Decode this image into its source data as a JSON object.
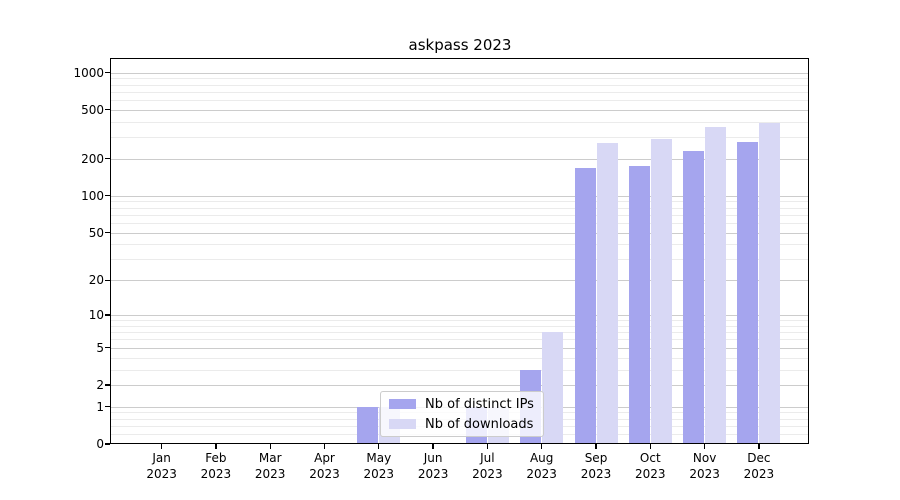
{
  "title": "askpass 2023",
  "chart_data": {
    "type": "bar",
    "title": "askpass 2023",
    "scale": "log1p",
    "ylim": [
      0,
      1090
    ],
    "grid": true,
    "legend_position": "lower center (inside plot, overlapping small bars)",
    "year_label": "2023",
    "categories": [
      "Jan",
      "Feb",
      "Mar",
      "Apr",
      "May",
      "Jun",
      "Jul",
      "Aug",
      "Sep",
      "Oct",
      "Nov",
      "Dec"
    ],
    "series": [
      {
        "name": "Nb of distinct IPs",
        "color": "#a5a5ee",
        "values": [
          0,
          0,
          0,
          0,
          1,
          0,
          1,
          3,
          170,
          175,
          230,
          275
        ]
      },
      {
        "name": "Nb of downloads",
        "color": "#d8d8f5",
        "values": [
          0,
          0,
          0,
          0,
          1,
          0,
          1,
          7,
          270,
          290,
          360,
          390
        ]
      }
    ],
    "y_ticks": [
      0,
      1,
      2,
      5,
      10,
      20,
      50,
      100,
      200,
      500,
      1000
    ],
    "y_tick_labels": [
      "0",
      "1",
      "2",
      "5",
      "10",
      "20",
      "50",
      "100",
      "200",
      "500",
      "1000"
    ],
    "y_minor_ticks": [
      0.2,
      0.4,
      0.6,
      0.8,
      3,
      4,
      6,
      7,
      8,
      9,
      30,
      40,
      60,
      70,
      80,
      90,
      300,
      400,
      600,
      700,
      800,
      900
    ],
    "xlabel": "",
    "ylabel": ""
  },
  "colors": {
    "ips_bar": "#a5a5ee",
    "downloads_bar": "#d8d8f5",
    "grid_major": "#cccccc",
    "grid_minor": "#ebebeb",
    "spine": "#000000",
    "background": "#ffffff"
  }
}
